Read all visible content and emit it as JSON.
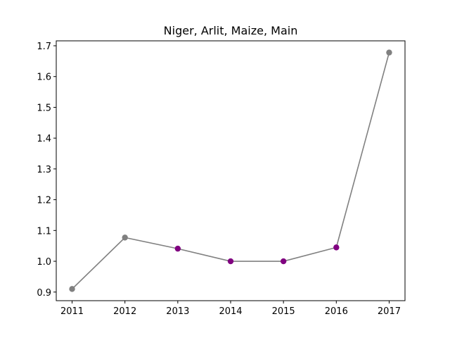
{
  "chart_data": {
    "type": "line",
    "title": "Niger, Arlit, Maize, Main",
    "xlabel": "",
    "ylabel": "",
    "x": [
      2011,
      2012,
      2013,
      2014,
      2015,
      2016,
      2017
    ],
    "series": [
      {
        "values": [
          0.91,
          1.077,
          1.041,
          1.0,
          1.0,
          1.045,
          1.678
        ],
        "line_color": "#808080",
        "point_colors": [
          "#808080",
          "#808080",
          "#800080",
          "#800080",
          "#800080",
          "#800080",
          "#808080"
        ]
      }
    ],
    "xticks": [
      "2011",
      "2012",
      "2013",
      "2014",
      "2015",
      "2016",
      "2017"
    ],
    "yticks": [
      "0.9",
      "1.0",
      "1.1",
      "1.2",
      "1.3",
      "1.4",
      "1.5",
      "1.6",
      "1.7"
    ],
    "xlim": [
      2010.7,
      2017.3
    ],
    "ylim": [
      0.872,
      1.716
    ],
    "grid": false,
    "legend": "none"
  }
}
